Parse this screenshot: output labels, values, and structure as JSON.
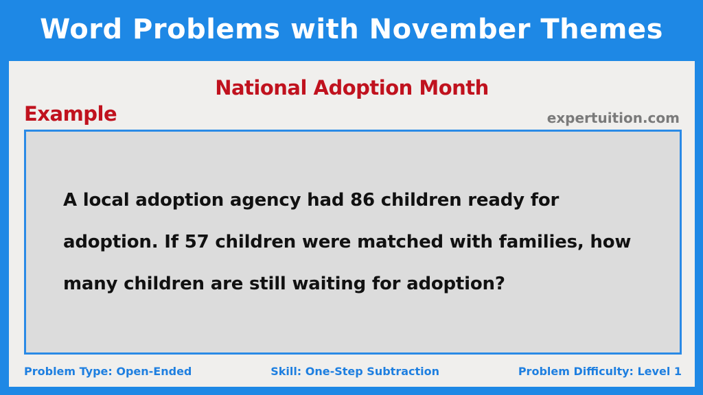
{
  "header": {
    "title": "Word Problems with November Themes"
  },
  "card": {
    "theme_title": "National Adoption Month",
    "label": "Example",
    "watermark": "expertuition.com",
    "problem": "A local adoption agency had 86 children ready for adoption. If 57 children were matched with families, how many children are still waiting for adoption?"
  },
  "footer": {
    "problem_type": "Problem Type: Open-Ended",
    "skill": "Skill: One-Step Subtraction",
    "difficulty": "Problem Difficulty: Level 1"
  },
  "colors": {
    "banner": "#1e88e5",
    "card_background": "#f0efed",
    "accent_red": "#c0121e",
    "box_border": "#2a8ae6",
    "box_fill": "#dcdcdc",
    "footer_text": "#1e7fe0"
  }
}
